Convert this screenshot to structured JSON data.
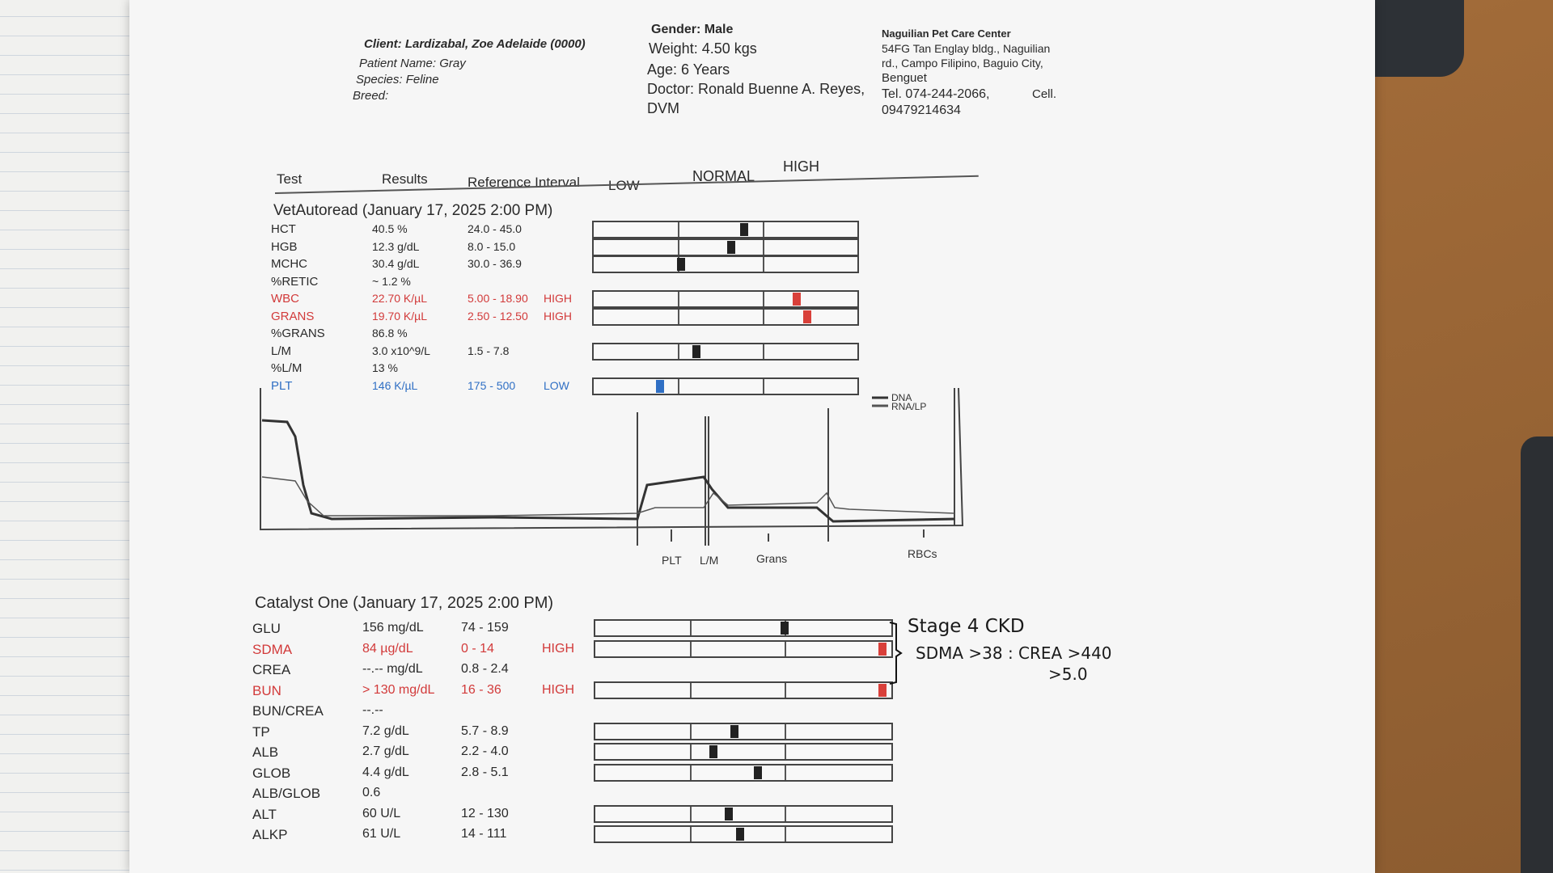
{
  "header": {
    "client": "Client: Lardizabal, Zoe Adelaide (0000)",
    "patient": "Patient Name: Gray",
    "species": "Species: Feline",
    "breed": "Breed:",
    "gender": "Gender: Male",
    "weight": "Weight: 4.50 kgs",
    "age": "Age: 6 Years",
    "doctor_line1": "Doctor: Ronald Buenne A. Reyes,",
    "doctor_line2": "DVM",
    "clinic_name": "Naguilian Pet Care Center",
    "clinic_addr1": "54FG Tan Englay bldg., Naguilian",
    "clinic_addr2": "rd., Campo Filipino, Baguio City,",
    "clinic_addr3": "Benguet",
    "clinic_tel": "Tel. 074-244-2066,",
    "clinic_cell_label": "Cell.",
    "clinic_cell": "09479214634"
  },
  "columns": {
    "test": "Test",
    "results": "Results",
    "reference": "Reference Interval",
    "low": "LOW",
    "normal": "NORMAL",
    "high": "HIGH"
  },
  "vetautoread": {
    "title": "VetAutoread (January 17, 2025 2:00 PM)",
    "rows": [
      {
        "test": "HCT",
        "result": "40.5 %",
        "ref": "24.0 - 45.0",
        "flag": "",
        "status": "normal",
        "marker": 0.57
      },
      {
        "test": "HGB",
        "result": "12.3 g/dL",
        "ref": "8.0 - 15.0",
        "flag": "",
        "status": "normal",
        "marker": 0.52
      },
      {
        "test": "MCHC",
        "result": "30.4 g/dL",
        "ref": "30.0 - 36.9",
        "flag": "",
        "status": "normal",
        "marker": 0.33
      },
      {
        "test": "%RETIC",
        "result": "~ 1.2 %",
        "ref": "",
        "flag": "",
        "status": "normal",
        "marker": null
      },
      {
        "test": "WBC",
        "result": "22.70 K/µL",
        "ref": "5.00 - 18.90",
        "flag": "HIGH",
        "status": "high",
        "marker": 0.77
      },
      {
        "test": "GRANS",
        "result": "19.70 K/µL",
        "ref": "2.50 - 12.50",
        "flag": "HIGH",
        "status": "high",
        "marker": 0.81
      },
      {
        "test": "%GRANS",
        "result": "86.8 %",
        "ref": "",
        "flag": "",
        "status": "normal",
        "marker": null
      },
      {
        "test": "L/M",
        "result": "3.0 x10^9/L",
        "ref": "1.5 - 7.8",
        "flag": "",
        "status": "normal",
        "marker": 0.39
      },
      {
        "test": "%L/M",
        "result": "13 %",
        "ref": "",
        "flag": "",
        "status": "normal",
        "marker": null
      },
      {
        "test": "PLT",
        "result": "146 K/µL",
        "ref": "175 - 500",
        "flag": "LOW",
        "status": "low",
        "marker": 0.25
      }
    ]
  },
  "histogram": {
    "legend_dna": "DNA",
    "legend_rna": "RNA/LP",
    "labels": [
      "PLT",
      "L/M",
      "Grans",
      "RBCs"
    ]
  },
  "catalyst": {
    "title": "Catalyst One (January 17, 2025 2:00 PM)",
    "rows": [
      {
        "test": "GLU",
        "result": "156 mg/dL",
        "ref": "74 - 159",
        "flag": "",
        "status": "normal",
        "marker": 0.64
      },
      {
        "test": "SDMA",
        "result": "84 µg/dL",
        "ref": "0 - 14",
        "flag": "HIGH",
        "status": "high",
        "marker": 0.97
      },
      {
        "test": "CREA",
        "result": "--.-- mg/dL",
        "ref": "0.8 - 2.4",
        "flag": "",
        "status": "normal",
        "marker": null
      },
      {
        "test": "BUN",
        "result": "> 130 mg/dL",
        "ref": "16 - 36",
        "flag": "HIGH",
        "status": "high",
        "marker": 0.97
      },
      {
        "test": "BUN/CREA",
        "result": "--.--",
        "ref": "",
        "flag": "",
        "status": "normal",
        "marker": null
      },
      {
        "test": "TP",
        "result": "7.2 g/dL",
        "ref": "5.7 - 8.9",
        "flag": "",
        "status": "normal",
        "marker": 0.47
      },
      {
        "test": "ALB",
        "result": "2.7 g/dL",
        "ref": "2.2 - 4.0",
        "flag": "",
        "status": "normal",
        "marker": 0.4
      },
      {
        "test": "GLOB",
        "result": "4.4 g/dL",
        "ref": "2.8 - 5.1",
        "flag": "",
        "status": "normal",
        "marker": 0.55
      },
      {
        "test": "ALB/GLOB",
        "result": "0.6",
        "ref": "",
        "flag": "",
        "status": "normal",
        "marker": null
      },
      {
        "test": "ALT",
        "result": "60 U/L",
        "ref": "12 - 130",
        "flag": "",
        "status": "normal",
        "marker": 0.45
      },
      {
        "test": "ALKP",
        "result": "61 U/L",
        "ref": "14 - 111",
        "flag": "",
        "status": "normal",
        "marker": 0.49
      }
    ]
  },
  "handwritten": {
    "line1": "Stage 4 CKD",
    "line2": "SDMA >38 : CREA >440",
    "line3": ">5.0"
  },
  "colors": {
    "high": "#d23a3a",
    "low": "#2f6fc4"
  }
}
